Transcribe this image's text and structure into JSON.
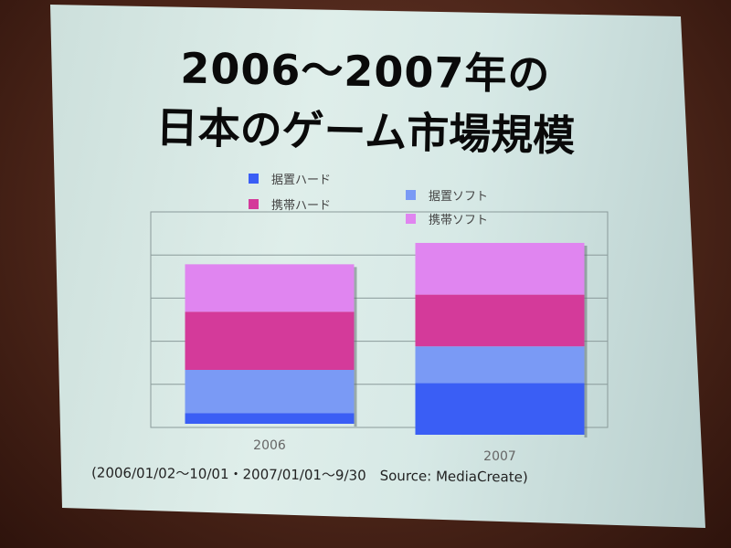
{
  "title": {
    "line1": "2006〜2007年の",
    "line2": "日本のゲーム市場規模"
  },
  "footnote": "(2006/01/02〜10/01・2007/01/01〜9/30　Source: MediaCreate)",
  "chart_data": {
    "type": "bar",
    "stacked": true,
    "categories": [
      "2006",
      "2007"
    ],
    "series": [
      {
        "name": "据置ハード",
        "color": "#3a5ef5",
        "values": [
          0.25,
          1.2
        ]
      },
      {
        "name": "据置ソフト",
        "color": "#7a9af5",
        "values": [
          1.0,
          0.85
        ]
      },
      {
        "name": "携帯ハード",
        "color": "#d43a9a",
        "values": [
          1.35,
          1.2
        ]
      },
      {
        "name": "携帯ソフト",
        "color": "#e085f0",
        "values": [
          1.1,
          1.2
        ]
      }
    ],
    "legend_position": "top",
    "ylim": [
      0,
      5
    ],
    "grid": true,
    "ytick_labels_shown": false
  }
}
